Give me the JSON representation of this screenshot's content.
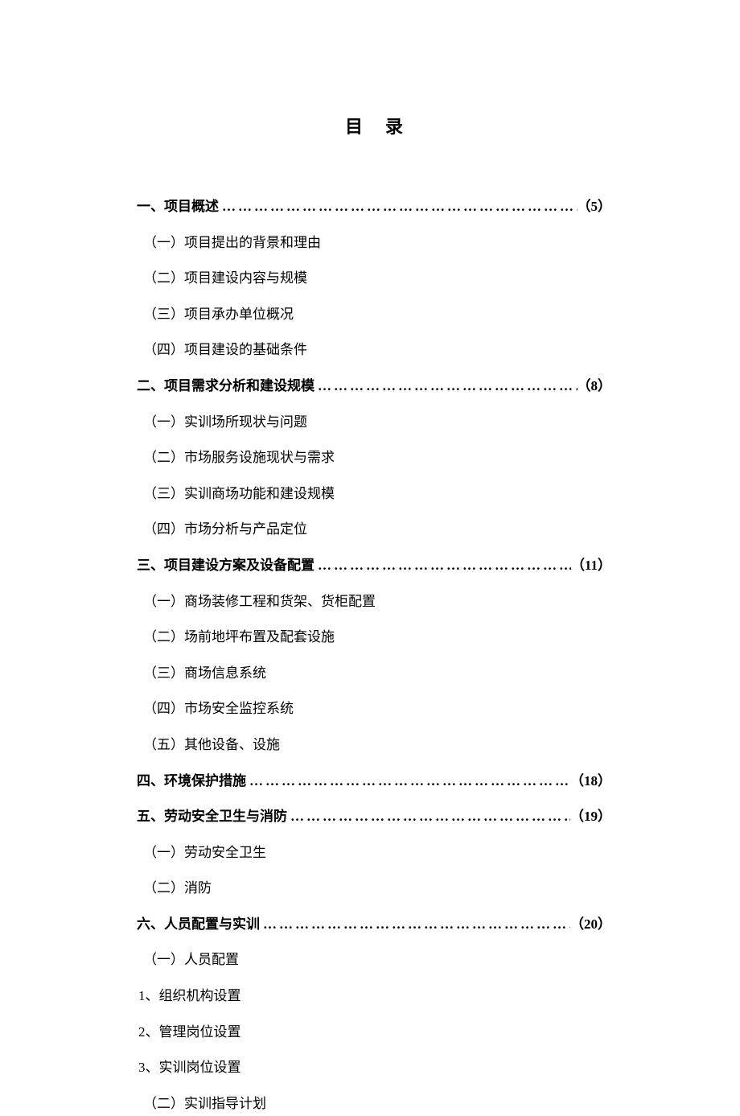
{
  "title": "目录",
  "dot_leader": "………………………………………………………………………………………………………",
  "sections": [
    {
      "heading": "一、项目概述",
      "page": "（5）",
      "subs": [
        "（一）项目提出的背景和理由",
        "（二）项目建设内容与规模",
        "（三）项目承办单位概况",
        "（四）项目建设的基础条件"
      ]
    },
    {
      "heading": "二、项目需求分析和建设规模",
      "page": "（8）",
      "subs": [
        "（一）实训场所现状与问题",
        "（二）市场服务设施现状与需求",
        "（三）实训商场功能和建设规模",
        "（四）市场分析与产品定位"
      ]
    },
    {
      "heading": "三、项目建设方案及设备配置",
      "page": "（11）",
      "subs": [
        "（一）商场装修工程和货架、货柜配置",
        "（二）场前地坪布置及配套设施",
        "（三）商场信息系统",
        "（四）市场安全监控系统",
        "（五）其他设备、设施"
      ]
    },
    {
      "heading": "四、环境保护措施",
      "page": "（18）",
      "subs": []
    },
    {
      "heading": "五、劳动安全卫生与消防",
      "page": "（19）",
      "subs": [
        "（一）劳动安全卫生",
        "（二）消防"
      ]
    },
    {
      "heading": "六、人员配置与实训",
      "page": "（20）",
      "subs": [
        "（一）人员配置"
      ],
      "subsubs": [
        "1、组织机构设置",
        "2、管理岗位设置",
        "3、实训岗位设置"
      ],
      "subs2": [
        "（二）实训指导计划"
      ]
    }
  ],
  "colors": {
    "background": "#ffffff",
    "text": "#000000"
  },
  "typography": {
    "title_fontsize": 22,
    "body_fontsize": 17,
    "font_family": "SimSun"
  }
}
